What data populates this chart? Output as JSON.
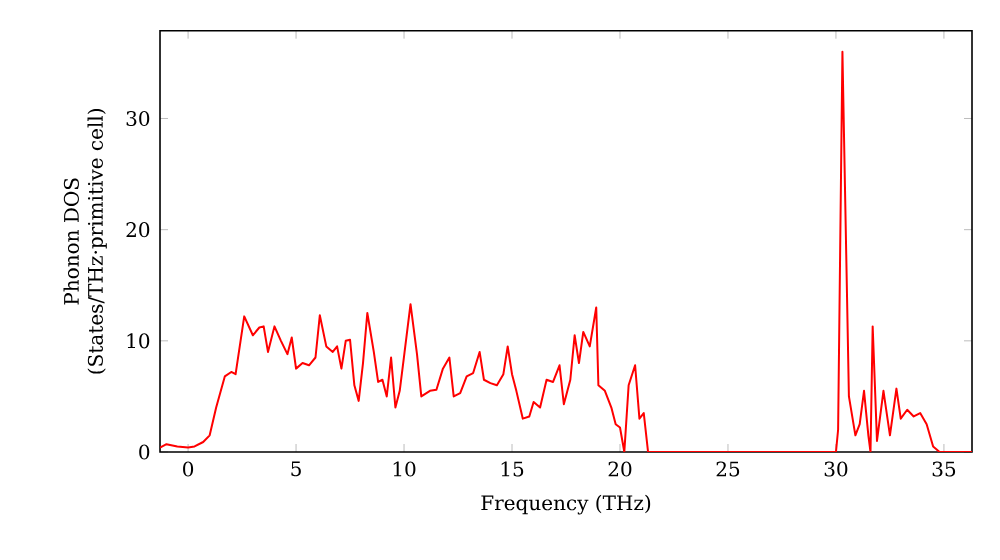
{
  "chart_data": {
    "type": "line",
    "xlabel": "Frequency (THz)",
    "ylabel": "Phonon DOS\n(States/THz·primitive cell)",
    "xlim": [
      -1.3,
      36.3
    ],
    "ylim": [
      0,
      37.9
    ],
    "xticks": [
      0,
      5,
      10,
      15,
      20,
      25,
      30,
      35
    ],
    "yticks": [
      0,
      10,
      20,
      30
    ],
    "marker": "none",
    "line_style": "solid",
    "series": [
      {
        "color": "#ff0000",
        "x": [
          -1.3,
          -1,
          -0.5,
          0,
          0.3,
          0.7,
          1.0,
          1.3,
          1.7,
          2.0,
          2.2,
          2.6,
          3.0,
          3.3,
          3.5,
          3.7,
          4.0,
          4.3,
          4.6,
          4.8,
          5.0,
          5.3,
          5.6,
          5.9,
          6.1,
          6.4,
          6.7,
          6.9,
          7.1,
          7.3,
          7.5,
          7.7,
          7.9,
          8.1,
          8.3,
          8.6,
          8.8,
          9.0,
          9.2,
          9.4,
          9.6,
          9.8,
          10.0,
          10.3,
          10.6,
          10.8,
          11.2,
          11.5,
          11.8,
          12.1,
          12.3,
          12.6,
          12.9,
          13.2,
          13.5,
          13.7,
          14.0,
          14.3,
          14.6,
          14.8,
          15.0,
          15.2,
          15.5,
          15.8,
          16.0,
          16.3,
          16.6,
          16.9,
          17.2,
          17.4,
          17.7,
          17.9,
          18.1,
          18.3,
          18.6,
          18.9,
          19.0,
          19.3,
          19.6,
          19.8,
          20.0,
          20.2,
          20.4,
          20.7,
          20.9,
          21.1,
          21.3,
          30.0,
          30.1,
          30.3,
          30.6,
          30.9,
          31.1,
          31.3,
          31.5,
          31.6,
          31.7,
          31.9,
          32.2,
          32.5,
          32.8,
          33.0,
          33.3,
          33.6,
          33.9,
          34.2,
          34.5,
          34.8,
          36.3
        ],
        "values": [
          0.4,
          0.7,
          0.5,
          0.4,
          0.5,
          0.9,
          1.5,
          4,
          6.8,
          7.2,
          7.0,
          12.2,
          10.5,
          11.2,
          11.3,
          9.0,
          11.3,
          10.0,
          8.8,
          10.3,
          7.5,
          8.0,
          7.8,
          8.5,
          12.3,
          9.5,
          9.0,
          9.5,
          7.5,
          10.0,
          10.1,
          6.0,
          4.6,
          8.0,
          12.5,
          9.0,
          6.3,
          6.5,
          5.0,
          8.5,
          4.0,
          5.5,
          8.6,
          13.3,
          8.8,
          5.0,
          5.5,
          5.6,
          7.5,
          8.5,
          5.0,
          5.3,
          6.8,
          7.1,
          9.0,
          6.5,
          6.2,
          6.0,
          7.0,
          9.5,
          7.0,
          5.5,
          3.0,
          3.2,
          4.5,
          4.0,
          6.5,
          6.3,
          7.8,
          4.3,
          6.5,
          10.5,
          8.0,
          10.8,
          9.5,
          13.0,
          6.0,
          5.5,
          4.0,
          2.5,
          2.2,
          0,
          6.0,
          7.8,
          3.0,
          3.5,
          0,
          0,
          2,
          36.0,
          5.0,
          1.5,
          2.5,
          5.5,
          1.5,
          0,
          11.3,
          1.0,
          5.5,
          1.5,
          5.7,
          3.0,
          3.8,
          3.2,
          3.5,
          2.5,
          0.5,
          0,
          0
        ]
      }
    ]
  }
}
